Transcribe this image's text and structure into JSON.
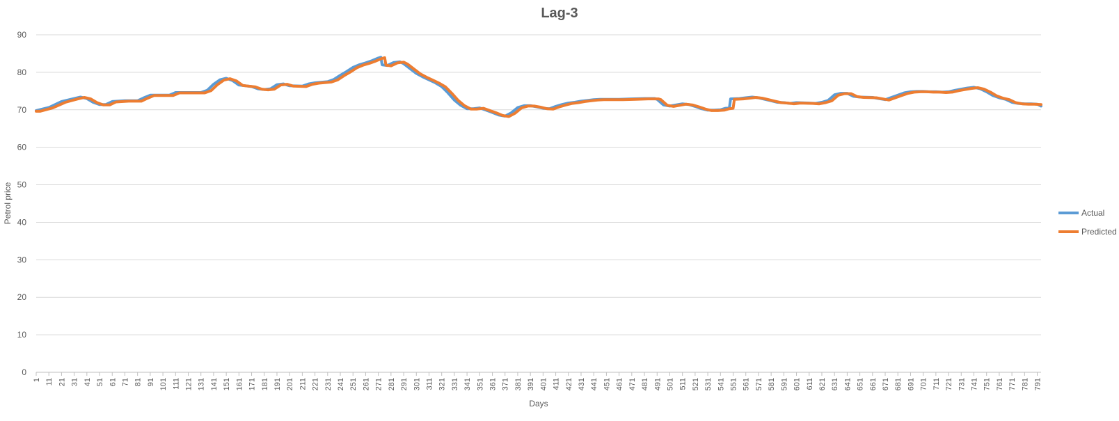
{
  "chart_data": {
    "type": "line",
    "title": "Lag-3",
    "xlabel": "Days",
    "ylabel": "Petrol price",
    "x_tick_labels": [
      "1",
      "11",
      "21",
      "31",
      "41",
      "51",
      "61",
      "71",
      "81",
      "91",
      "101",
      "111",
      "121",
      "131",
      "141",
      "151",
      "161",
      "171",
      "181",
      "191",
      "201",
      "211",
      "221",
      "231",
      "241",
      "251",
      "261",
      "271",
      "281",
      "291",
      "301",
      "311",
      "321",
      "331",
      "341",
      "351",
      "361",
      "371",
      "381",
      "391",
      "401",
      "411",
      "421",
      "431",
      "441",
      "451",
      "461",
      "471",
      "481",
      "491",
      "501",
      "511",
      "521",
      "531",
      "541",
      "551",
      "561",
      "571",
      "581",
      "591",
      "601",
      "611",
      "621",
      "631",
      "641",
      "651",
      "661",
      "671",
      "681",
      "691",
      "701",
      "711",
      "721",
      "731",
      "741",
      "751",
      "761",
      "771",
      "781",
      "791"
    ],
    "y_tick_labels": [
      "0",
      "10",
      "20",
      "30",
      "40",
      "50",
      "60",
      "70",
      "80",
      "90"
    ],
    "xlim": [
      1,
      794
    ],
    "ylim": [
      0,
      90
    ],
    "grid": true,
    "legend_position": "right",
    "series": [
      {
        "name": "Actual",
        "color": "#5B9BD5",
        "points": [
          [
            1,
            69.8
          ],
          [
            11,
            70.6
          ],
          [
            21,
            72.2
          ],
          [
            31,
            73.0
          ],
          [
            36,
            73.4
          ],
          [
            41,
            73.0
          ],
          [
            46,
            72.0
          ],
          [
            51,
            71.4
          ],
          [
            56,
            71.4
          ],
          [
            61,
            72.2
          ],
          [
            71,
            72.4
          ],
          [
            81,
            72.4
          ],
          [
            86,
            73.2
          ],
          [
            91,
            73.9
          ],
          [
            101,
            73.9
          ],
          [
            106,
            73.9
          ],
          [
            111,
            74.6
          ],
          [
            121,
            74.6
          ],
          [
            131,
            74.6
          ],
          [
            136,
            75.2
          ],
          [
            141,
            76.8
          ],
          [
            146,
            78.0
          ],
          [
            151,
            78.4
          ],
          [
            156,
            77.8
          ],
          [
            161,
            76.6
          ],
          [
            171,
            76.2
          ],
          [
            176,
            75.6
          ],
          [
            181,
            75.4
          ],
          [
            186,
            75.6
          ],
          [
            191,
            76.7
          ],
          [
            196,
            76.9
          ],
          [
            201,
            76.4
          ],
          [
            211,
            76.3
          ],
          [
            216,
            76.9
          ],
          [
            221,
            77.2
          ],
          [
            231,
            77.5
          ],
          [
            236,
            78.1
          ],
          [
            241,
            79.2
          ],
          [
            246,
            80.2
          ],
          [
            251,
            81.3
          ],
          [
            256,
            82.0
          ],
          [
            261,
            82.5
          ],
          [
            266,
            83.1
          ],
          [
            271,
            83.8
          ],
          [
            273,
            84.0
          ],
          [
            274,
            82.0
          ],
          [
            278,
            81.8
          ],
          [
            283,
            82.6
          ],
          [
            288,
            82.8
          ],
          [
            291,
            82.3
          ],
          [
            296,
            81.0
          ],
          [
            301,
            79.7
          ],
          [
            306,
            78.8
          ],
          [
            311,
            78.0
          ],
          [
            316,
            77.2
          ],
          [
            321,
            76.2
          ],
          [
            326,
            74.5
          ],
          [
            331,
            72.6
          ],
          [
            336,
            71.2
          ],
          [
            341,
            70.3
          ],
          [
            346,
            70.3
          ],
          [
            351,
            70.5
          ],
          [
            356,
            69.9
          ],
          [
            361,
            69.3
          ],
          [
            366,
            68.6
          ],
          [
            371,
            68.3
          ],
          [
            376,
            69.2
          ],
          [
            381,
            70.6
          ],
          [
            386,
            71.1
          ],
          [
            391,
            71.1
          ],
          [
            396,
            70.8
          ],
          [
            401,
            70.4
          ],
          [
            406,
            70.3
          ],
          [
            411,
            70.9
          ],
          [
            416,
            71.4
          ],
          [
            421,
            71.8
          ],
          [
            426,
            72.0
          ],
          [
            431,
            72.3
          ],
          [
            436,
            72.5
          ],
          [
            441,
            72.7
          ],
          [
            446,
            72.8
          ],
          [
            451,
            72.8
          ],
          [
            461,
            72.8
          ],
          [
            471,
            72.9
          ],
          [
            481,
            73.0
          ],
          [
            489,
            73.0
          ],
          [
            491,
            72.8
          ],
          [
            496,
            71.3
          ],
          [
            501,
            71.0
          ],
          [
            511,
            71.6
          ],
          [
            516,
            71.4
          ],
          [
            521,
            70.9
          ],
          [
            526,
            70.3
          ],
          [
            531,
            69.9
          ],
          [
            536,
            69.9
          ],
          [
            541,
            70.0
          ],
          [
            545,
            70.4
          ],
          [
            548,
            70.5
          ],
          [
            549,
            72.9
          ],
          [
            556,
            73.0
          ],
          [
            561,
            73.2
          ],
          [
            566,
            73.4
          ],
          [
            571,
            73.2
          ],
          [
            576,
            72.8
          ],
          [
            581,
            72.4
          ],
          [
            586,
            72.0
          ],
          [
            591,
            71.9
          ],
          [
            596,
            71.7
          ],
          [
            601,
            71.9
          ],
          [
            611,
            71.8
          ],
          [
            616,
            71.7
          ],
          [
            621,
            72.0
          ],
          [
            626,
            72.5
          ],
          [
            631,
            74.0
          ],
          [
            636,
            74.4
          ],
          [
            641,
            74.4
          ],
          [
            646,
            73.6
          ],
          [
            651,
            73.4
          ],
          [
            661,
            73.3
          ],
          [
            666,
            73.0
          ],
          [
            671,
            72.7
          ],
          [
            676,
            73.3
          ],
          [
            681,
            73.9
          ],
          [
            686,
            74.5
          ],
          [
            691,
            74.8
          ],
          [
            696,
            74.9
          ],
          [
            701,
            74.9
          ],
          [
            706,
            74.8
          ],
          [
            711,
            74.8
          ],
          [
            716,
            74.7
          ],
          [
            721,
            74.8
          ],
          [
            726,
            75.2
          ],
          [
            731,
            75.5
          ],
          [
            736,
            75.8
          ],
          [
            741,
            76.0
          ],
          [
            746,
            75.6
          ],
          [
            751,
            74.8
          ],
          [
            756,
            73.8
          ],
          [
            761,
            73.2
          ],
          [
            766,
            72.8
          ],
          [
            771,
            72.0
          ],
          [
            776,
            71.7
          ],
          [
            781,
            71.6
          ],
          [
            786,
            71.6
          ],
          [
            791,
            71.5
          ],
          [
            794,
            71.0
          ]
        ]
      },
      {
        "name": "Predicted",
        "color": "#ED7D31",
        "points": [
          [
            1,
            69.6
          ],
          [
            4,
            69.6
          ],
          [
            14,
            70.5
          ],
          [
            24,
            72.0
          ],
          [
            34,
            72.9
          ],
          [
            39,
            73.3
          ],
          [
            44,
            72.9
          ],
          [
            49,
            71.9
          ],
          [
            54,
            71.3
          ],
          [
            59,
            71.3
          ],
          [
            64,
            72.1
          ],
          [
            74,
            72.3
          ],
          [
            84,
            72.3
          ],
          [
            89,
            73.1
          ],
          [
            94,
            73.8
          ],
          [
            104,
            73.8
          ],
          [
            109,
            73.8
          ],
          [
            114,
            74.5
          ],
          [
            124,
            74.5
          ],
          [
            134,
            74.5
          ],
          [
            139,
            75.1
          ],
          [
            144,
            76.7
          ],
          [
            149,
            77.9
          ],
          [
            154,
            78.3
          ],
          [
            159,
            77.7
          ],
          [
            164,
            76.5
          ],
          [
            174,
            76.1
          ],
          [
            179,
            75.5
          ],
          [
            184,
            75.3
          ],
          [
            189,
            75.5
          ],
          [
            194,
            76.6
          ],
          [
            199,
            76.8
          ],
          [
            204,
            76.3
          ],
          [
            214,
            76.2
          ],
          [
            219,
            76.8
          ],
          [
            224,
            77.1
          ],
          [
            234,
            77.4
          ],
          [
            239,
            78.0
          ],
          [
            244,
            79.1
          ],
          [
            249,
            80.1
          ],
          [
            254,
            81.2
          ],
          [
            259,
            81.9
          ],
          [
            264,
            82.4
          ],
          [
            269,
            83.0
          ],
          [
            274,
            83.7
          ],
          [
            276,
            83.9
          ],
          [
            277,
            81.9
          ],
          [
            281,
            81.7
          ],
          [
            286,
            82.5
          ],
          [
            291,
            82.7
          ],
          [
            294,
            82.2
          ],
          [
            299,
            80.9
          ],
          [
            304,
            79.6
          ],
          [
            309,
            78.7
          ],
          [
            314,
            77.9
          ],
          [
            319,
            77.1
          ],
          [
            324,
            76.1
          ],
          [
            329,
            74.4
          ],
          [
            334,
            72.5
          ],
          [
            339,
            71.1
          ],
          [
            344,
            70.2
          ],
          [
            349,
            70.2
          ],
          [
            354,
            70.4
          ],
          [
            359,
            69.8
          ],
          [
            364,
            69.2
          ],
          [
            369,
            68.5
          ],
          [
            374,
            68.2
          ],
          [
            379,
            69.1
          ],
          [
            384,
            70.5
          ],
          [
            389,
            71.0
          ],
          [
            394,
            71.0
          ],
          [
            399,
            70.7
          ],
          [
            404,
            70.3
          ],
          [
            409,
            70.2
          ],
          [
            414,
            70.8
          ],
          [
            419,
            71.3
          ],
          [
            424,
            71.7
          ],
          [
            429,
            71.9
          ],
          [
            434,
            72.2
          ],
          [
            439,
            72.4
          ],
          [
            444,
            72.6
          ],
          [
            449,
            72.7
          ],
          [
            454,
            72.7
          ],
          [
            464,
            72.7
          ],
          [
            474,
            72.8
          ],
          [
            484,
            72.9
          ],
          [
            492,
            72.9
          ],
          [
            494,
            72.7
          ],
          [
            499,
            71.2
          ],
          [
            504,
            70.9
          ],
          [
            514,
            71.5
          ],
          [
            519,
            71.3
          ],
          [
            524,
            70.8
          ],
          [
            529,
            70.2
          ],
          [
            534,
            69.8
          ],
          [
            539,
            69.8
          ],
          [
            544,
            69.9
          ],
          [
            548,
            70.3
          ],
          [
            551,
            70.4
          ],
          [
            552,
            72.8
          ],
          [
            559,
            72.9
          ],
          [
            564,
            73.1
          ],
          [
            569,
            73.3
          ],
          [
            574,
            73.1
          ],
          [
            579,
            72.7
          ],
          [
            584,
            72.3
          ],
          [
            589,
            71.9
          ],
          [
            594,
            71.8
          ],
          [
            599,
            71.6
          ],
          [
            604,
            71.8
          ],
          [
            614,
            71.7
          ],
          [
            619,
            71.6
          ],
          [
            624,
            71.9
          ],
          [
            629,
            72.4
          ],
          [
            634,
            73.9
          ],
          [
            639,
            74.3
          ],
          [
            644,
            74.3
          ],
          [
            649,
            73.5
          ],
          [
            654,
            73.3
          ],
          [
            664,
            73.2
          ],
          [
            669,
            72.9
          ],
          [
            674,
            72.6
          ],
          [
            679,
            73.2
          ],
          [
            684,
            73.8
          ],
          [
            689,
            74.4
          ],
          [
            694,
            74.7
          ],
          [
            699,
            74.8
          ],
          [
            704,
            74.8
          ],
          [
            709,
            74.7
          ],
          [
            714,
            74.7
          ],
          [
            719,
            74.6
          ],
          [
            724,
            74.7
          ],
          [
            729,
            75.1
          ],
          [
            734,
            75.4
          ],
          [
            739,
            75.7
          ],
          [
            744,
            75.9
          ],
          [
            749,
            75.5
          ],
          [
            754,
            74.7
          ],
          [
            759,
            73.7
          ],
          [
            764,
            73.1
          ],
          [
            769,
            72.7
          ],
          [
            774,
            71.9
          ],
          [
            779,
            71.6
          ],
          [
            784,
            71.5
          ],
          [
            789,
            71.5
          ],
          [
            794,
            71.4
          ]
        ]
      }
    ]
  }
}
